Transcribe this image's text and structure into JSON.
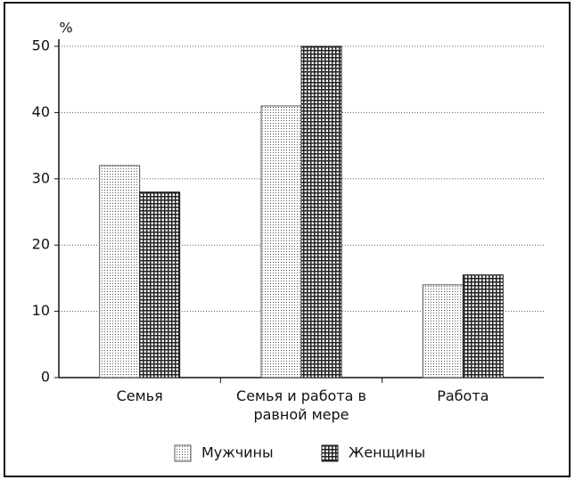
{
  "chart_data": {
    "type": "bar",
    "y_axis_label": "%",
    "categories": [
      "Семья",
      "Семья и работа в равной мере",
      "Работа"
    ],
    "series": [
      {
        "name": "Мужчины",
        "color": "#555555",
        "pattern": "dots",
        "values": [
          32,
          41,
          14
        ]
      },
      {
        "name": "Женщины",
        "color": "#222222",
        "pattern": "grid",
        "values": [
          28,
          50,
          15.5
        ]
      }
    ],
    "ylim": [
      0,
      50
    ],
    "yticks": [
      0,
      10,
      20,
      30,
      40,
      50
    ],
    "grid": true,
    "legend": "bottom"
  }
}
